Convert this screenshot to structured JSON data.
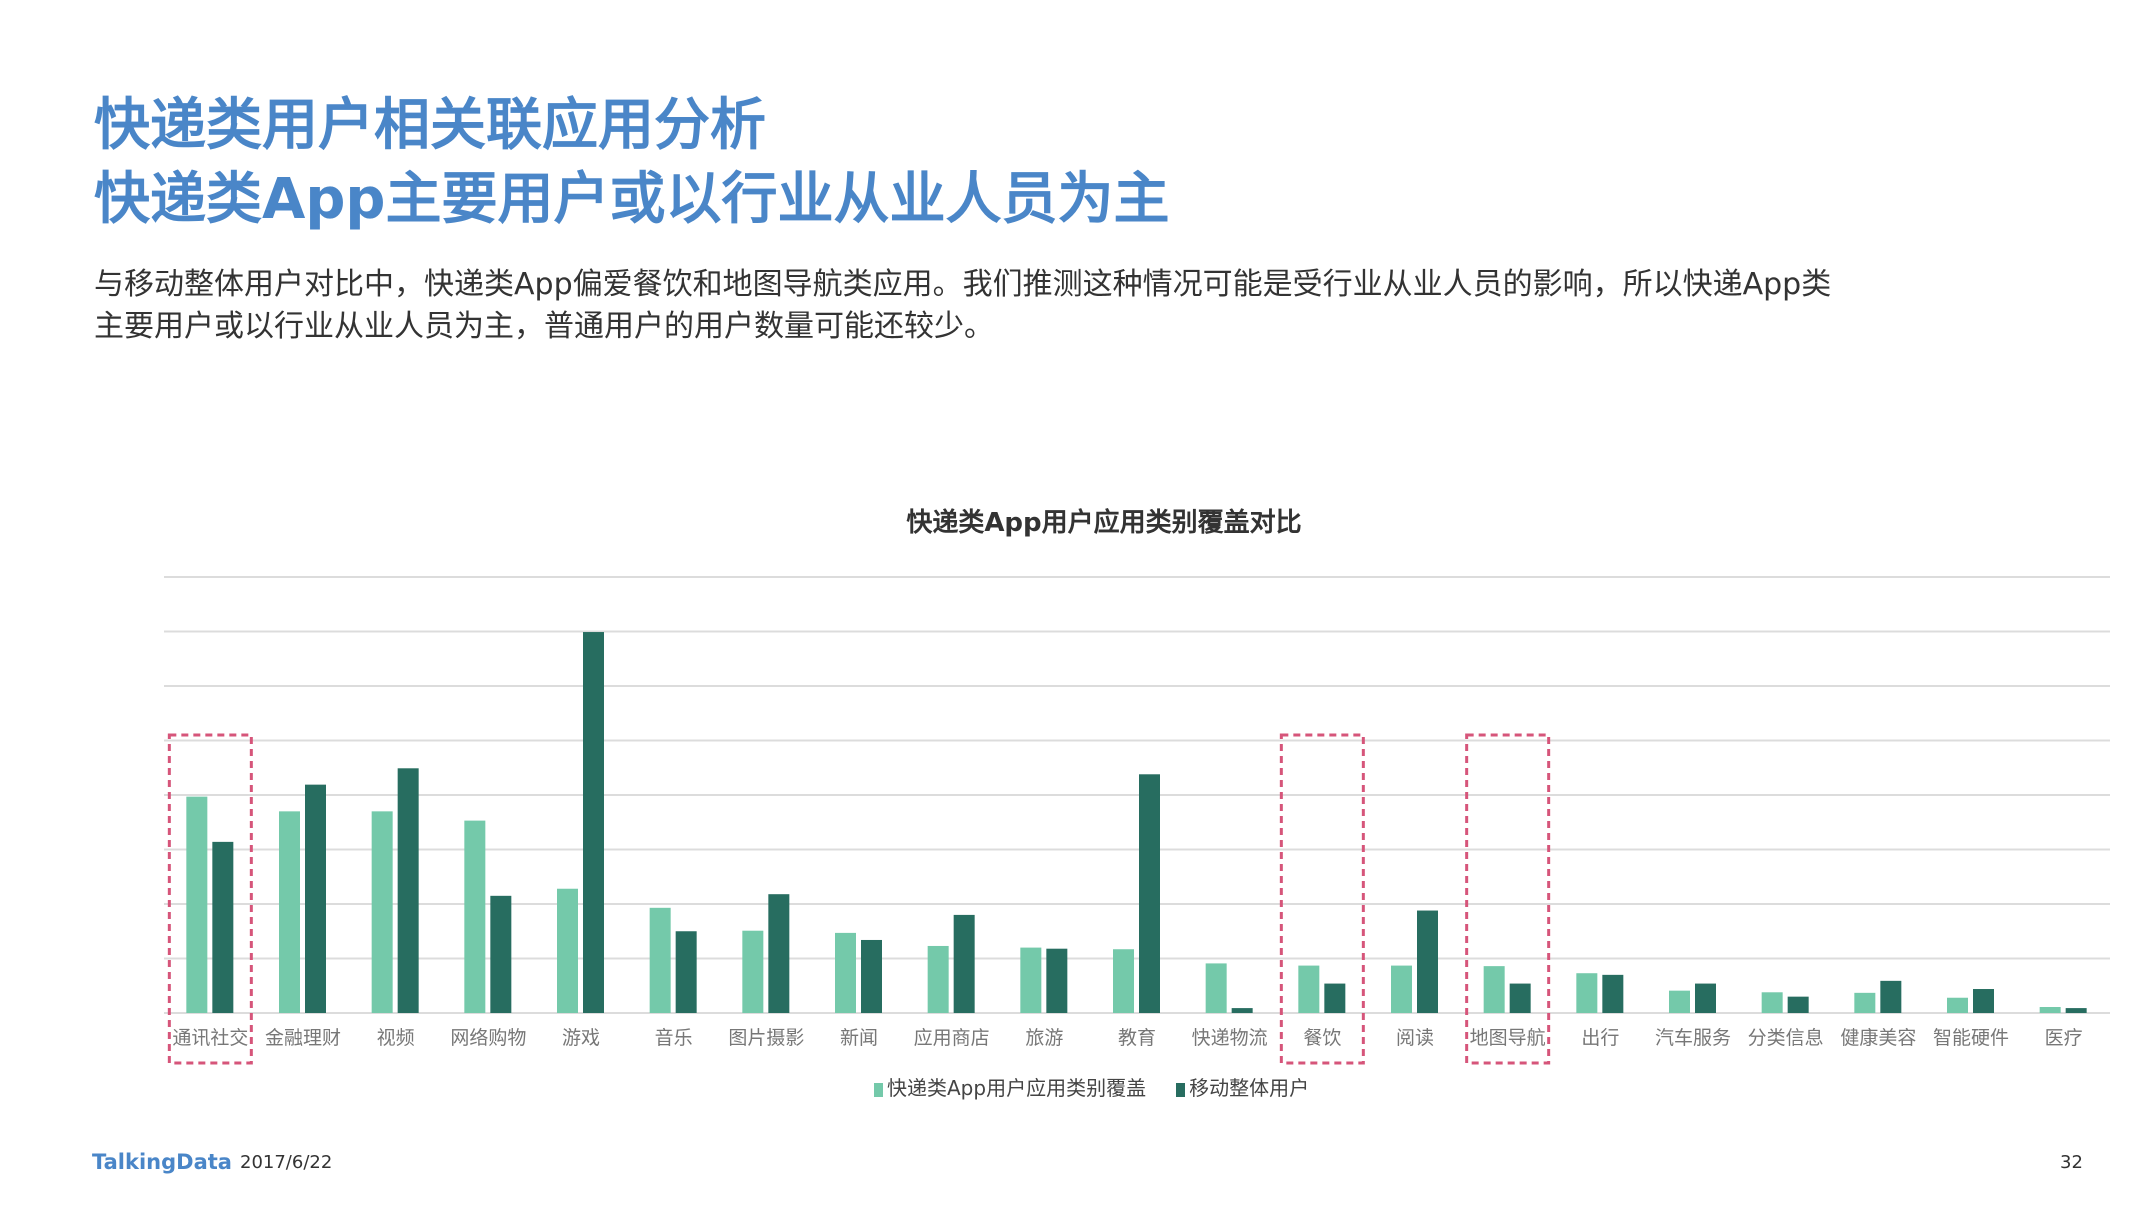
{
  "header": {
    "title_line1": "快递类用户相关联应用分析",
    "title_line2": "快递类App主要用户或以行业从业人员为主"
  },
  "description": {
    "line1": "与移动整体用户对比中，快递类App偏爱餐饮和地图导航类应用。我们推测这种情况可能是受行业从业人员的影响，所以快递App类",
    "line2": "主要用户或以行业从业人员为主，普通用户的用户数量可能还较少。"
  },
  "colors": {
    "series1": "#74c9aa",
    "series2": "#276d60",
    "highlight": "#d6557a",
    "title": "#4a86c8"
  },
  "chart_data": {
    "type": "bar",
    "title": "快递类App用户应用类别覆盖对比",
    "xlabel": "",
    "ylabel": "",
    "ylim": [
      0,
      8
    ],
    "grid": true,
    "legend_position": "bottom",
    "categories": [
      "通讯社交",
      "金融理财",
      "视频",
      "网络购物",
      "游戏",
      "音乐",
      "图片摄影",
      "新闻",
      "应用商店",
      "旅游",
      "教育",
      "快递物流",
      "餐饮",
      "阅读",
      "地图导航",
      "出行",
      "汽车服务",
      "分类信息",
      "健康美容",
      "智能硬件",
      "医疗"
    ],
    "series": [
      {
        "name": "快递类App用户应用类别覆盖",
        "values": [
          3.97,
          3.7,
          3.7,
          3.53,
          2.28,
          1.93,
          1.51,
          1.47,
          1.23,
          1.2,
          1.17,
          0.91,
          0.87,
          0.87,
          0.86,
          0.73,
          0.41,
          0.38,
          0.37,
          0.28,
          0.11
        ]
      },
      {
        "name": "移动整体用户",
        "values": [
          3.14,
          4.19,
          4.49,
          2.15,
          6.99,
          1.5,
          2.18,
          1.34,
          1.8,
          1.18,
          4.38,
          0.09,
          0.54,
          1.88,
          0.54,
          0.7,
          0.54,
          0.3,
          0.59,
          0.44,
          0.09
        ]
      }
    ],
    "highlighted_categories": [
      "通讯社交",
      "餐饮",
      "地图导航"
    ]
  },
  "footer": {
    "logo": "TalkingData",
    "date": "2017/6/22",
    "page": "32"
  }
}
